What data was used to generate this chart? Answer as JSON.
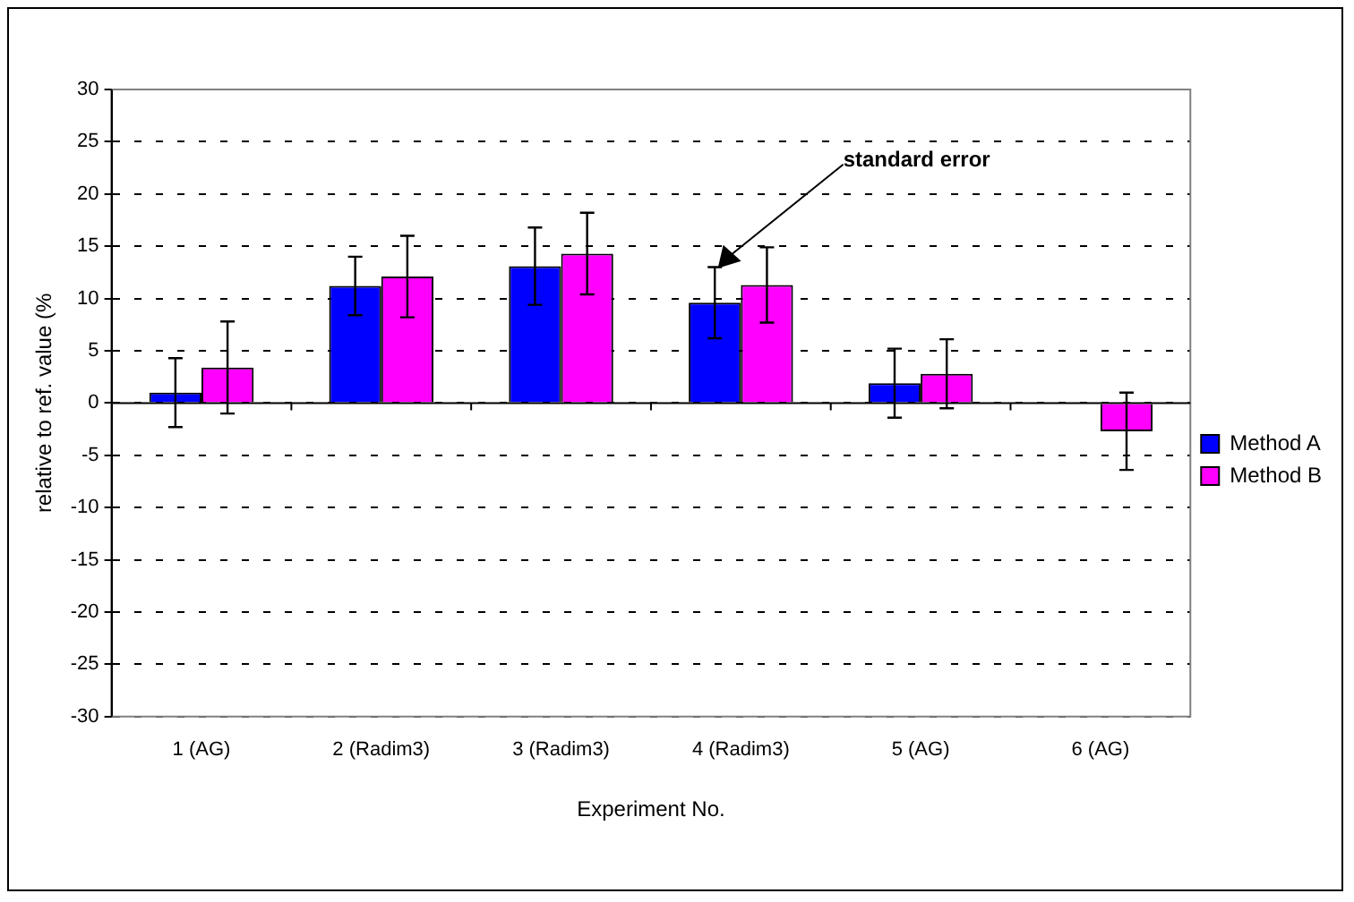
{
  "chart_data": {
    "type": "bar",
    "xlabel": "Experiment No.",
    "ylabel": "relative to ref. value (%",
    "categories": [
      "1 (AG)",
      "2 (Radim3)",
      "3 (Radim3)",
      "4 (Radim3)",
      "5 (AG)",
      "6 (AG)"
    ],
    "series": [
      {
        "name": "Method A",
        "color": "#0000ff",
        "values": [
          1.0,
          11.2,
          13.1,
          9.6,
          1.9,
          null
        ],
        "errors": [
          3.3,
          2.8,
          3.7,
          3.4,
          3.3,
          null
        ]
      },
      {
        "name": "Method B",
        "color": "#ff00ff",
        "values": [
          3.4,
          12.1,
          14.3,
          11.3,
          2.8,
          -2.7
        ],
        "errors": [
          4.4,
          3.9,
          3.9,
          3.6,
          3.3,
          3.7
        ]
      }
    ],
    "ylim": [
      -30,
      30
    ],
    "yticks": [
      -30,
      -25,
      -20,
      -15,
      -10,
      -5,
      0,
      5,
      10,
      15,
      20,
      25,
      30
    ],
    "grid": "y",
    "legend": "right",
    "annotations": [
      "standard error"
    ]
  }
}
